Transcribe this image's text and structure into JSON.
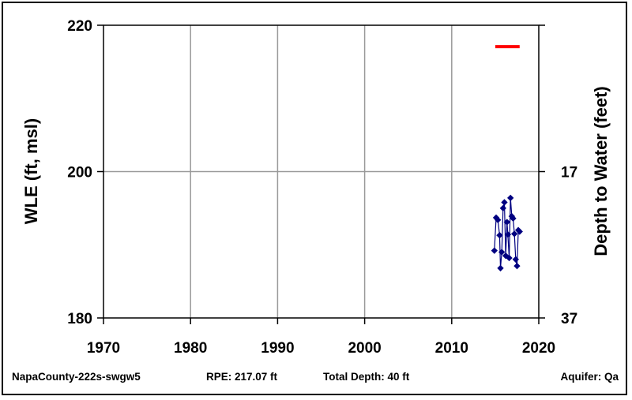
{
  "chart_data": {
    "type": "scatter",
    "title": "",
    "ylabel": "WLE (ft, msl)",
    "y2label": "Depth to Water (feet)",
    "xlim": [
      1970,
      2020
    ],
    "ylim": [
      180,
      220
    ],
    "xticks": [
      "1970",
      "1980",
      "1990",
      "2000",
      "2010",
      "2020"
    ],
    "yticks": [
      "180",
      "200",
      "220"
    ],
    "y2ticks": [
      "17",
      "37"
    ],
    "grid": true,
    "rpe_marker": {
      "color": "#ff0000",
      "x": [
        2015.0,
        2017.8
      ],
      "y": 217.07
    },
    "series": [
      {
        "color": "#000080",
        "marker": "diamond",
        "x": [
          2014.9,
          2015.1,
          2015.3,
          2015.5,
          2015.6,
          2015.75,
          2015.9,
          2016.05,
          2016.2,
          2016.35,
          2016.45,
          2016.6,
          2016.75,
          2016.9,
          2017.05,
          2017.2,
          2017.35,
          2017.5,
          2017.65,
          2017.8
        ],
        "y": [
          189.2,
          193.7,
          193.4,
          191.3,
          186.8,
          189.0,
          195.0,
          195.8,
          188.5,
          193.1,
          191.4,
          188.2,
          196.4,
          193.9,
          193.6,
          191.5,
          188.0,
          187.1,
          192.0,
          191.8
        ]
      }
    ]
  },
  "footer": {
    "well_id": "NapaCounty-222s-swgw5",
    "rpe": "RPE: 217.07 ft",
    "total_depth": "Total Depth: 40 ft",
    "aquifer": "Aquifer: Qa"
  }
}
